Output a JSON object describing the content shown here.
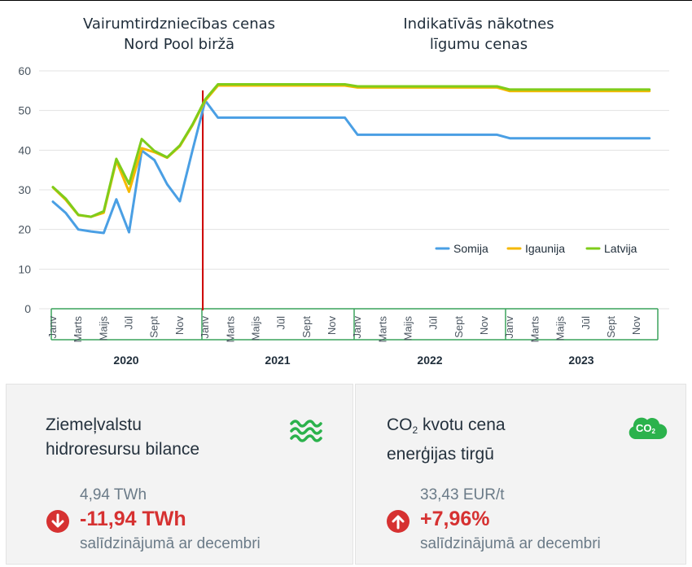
{
  "headings": {
    "left": [
      "Vairumtirdzniecības cenas",
      "Nord Pool biržā"
    ],
    "right": [
      "Indikatīvās nākotnes",
      "līgumu cenas"
    ]
  },
  "chart_data": {
    "type": "line",
    "yticks": [
      0,
      10,
      20,
      30,
      40,
      50,
      60
    ],
    "ylim": [
      0,
      60
    ],
    "month_labels": [
      "Janv",
      "Marts",
      "Maijs",
      "Jūl",
      "Sept",
      "Nov"
    ],
    "years": [
      "2020",
      "2021",
      "2022",
      "2023"
    ],
    "forecast_start": "2021-01",
    "legend_position": "right, middle",
    "grid": "horizontal",
    "x": [
      "2020-01",
      "2020-02",
      "2020-03",
      "2020-04",
      "2020-05",
      "2020-06",
      "2020-07",
      "2020-08",
      "2020-09",
      "2020-10",
      "2020-11",
      "2020-12",
      "2021-01",
      "2021-02",
      "2021-03",
      "2021-04",
      "2021-05",
      "2021-06",
      "2021-07",
      "2021-08",
      "2021-09",
      "2021-10",
      "2021-11",
      "2021-12",
      "2022-01",
      "2022-02",
      "2022-03",
      "2022-04",
      "2022-05",
      "2022-06",
      "2022-07",
      "2022-08",
      "2022-09",
      "2022-10",
      "2022-11",
      "2022-12",
      "2023-01",
      "2023-02",
      "2023-03",
      "2023-04",
      "2023-05",
      "2023-06",
      "2023-07",
      "2023-08",
      "2023-09",
      "2023-10",
      "2023-11",
      "2023-12"
    ],
    "series": [
      {
        "name": "Somija",
        "color": "#4a9fe4",
        "values": [
          27.0,
          24.2,
          20.0,
          19.5,
          19.1,
          27.6,
          19.3,
          39.9,
          37.5,
          31.4,
          27.1,
          40.0,
          52.5,
          48.2,
          48.2,
          48.2,
          48.2,
          48.2,
          48.2,
          48.2,
          48.2,
          48.2,
          48.2,
          48.2,
          43.9,
          43.9,
          43.9,
          43.9,
          43.9,
          43.9,
          43.9,
          43.9,
          43.9,
          43.9,
          43.9,
          43.9,
          43.0,
          43.0,
          43.0,
          43.0,
          43.0,
          43.0,
          43.0,
          43.0,
          43.0,
          43.0,
          43.0,
          43.0
        ]
      },
      {
        "name": "Igaunija",
        "color": "#f5b800",
        "values": [
          30.6,
          27.5,
          23.6,
          23.2,
          24.2,
          37.3,
          29.5,
          40.5,
          39.5,
          38.1,
          41.0,
          46.3,
          52.5,
          56.3,
          56.3,
          56.3,
          56.3,
          56.3,
          56.3,
          56.3,
          56.3,
          56.3,
          56.3,
          56.3,
          55.8,
          55.8,
          55.8,
          55.8,
          55.8,
          55.8,
          55.8,
          55.8,
          55.8,
          55.8,
          55.8,
          55.8,
          54.9,
          54.9,
          54.9,
          54.9,
          54.9,
          54.9,
          54.9,
          54.9,
          54.9,
          54.9,
          54.9,
          54.9
        ]
      },
      {
        "name": "Latvija",
        "color": "#7fcc1a",
        "values": [
          30.7,
          27.8,
          23.7,
          23.2,
          24.6,
          37.8,
          31.5,
          42.8,
          39.8,
          38.2,
          41.2,
          46.5,
          52.8,
          56.6,
          56.6,
          56.6,
          56.6,
          56.6,
          56.6,
          56.6,
          56.6,
          56.6,
          56.6,
          56.6,
          56.1,
          56.1,
          56.1,
          56.1,
          56.1,
          56.1,
          56.1,
          56.1,
          56.1,
          56.1,
          56.1,
          56.1,
          55.3,
          55.3,
          55.3,
          55.3,
          55.3,
          55.3,
          55.3,
          55.3,
          55.3,
          55.3,
          55.3,
          55.3
        ]
      }
    ]
  },
  "panels": {
    "hydro": {
      "title_line1": "Ziemeļvalstu",
      "title_line2": "hidroresursu bilance",
      "icon": "water-waves-icon",
      "base_value": "4,94 TWh",
      "change": "-11,94 TWh",
      "direction": "down",
      "note": "salīdzinājumā ar decembri"
    },
    "co2": {
      "title_co": "CO",
      "title_sub": "2",
      "title_rest": " kvotu cena",
      "title_line2": "enerģijas tirgū",
      "icon": "co2-cloud-icon",
      "icon_text": "CO",
      "icon_sub": "2",
      "base_value": "33,43 EUR/t",
      "change": "+7,96%",
      "direction": "up",
      "note": "salīdzinājumā ar decembri"
    }
  },
  "colors": {
    "accent_green": "#2bb24c",
    "down_red": "#d63131",
    "forecast_line": "#cc0000",
    "axis_green": "#3aa35c"
  }
}
